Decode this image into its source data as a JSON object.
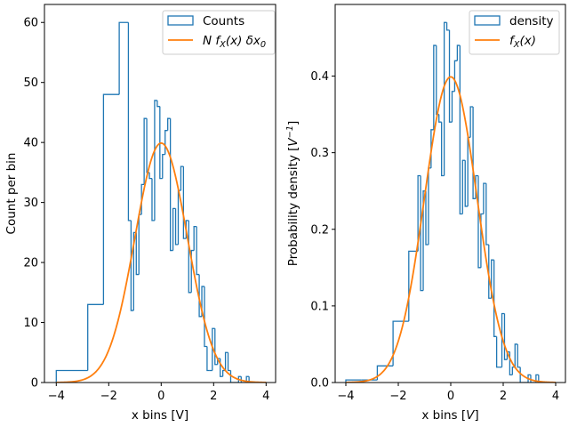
{
  "colors": {
    "hist": "#1f77b4",
    "curve": "#ff7f0e"
  },
  "chart_data": [
    {
      "type": "histogram-step",
      "xlabel": "x bins [V]",
      "ylabel": "Count per bin",
      "xlim": [
        -4.4,
        4.35
      ],
      "ylim": [
        0,
        63
      ],
      "xticks": [
        "−4",
        "−2",
        "0",
        "2",
        "4"
      ],
      "yticks": [
        "0",
        "10",
        "20",
        "30",
        "40",
        "50",
        "60"
      ],
      "grid": false,
      "legend_position": "top-right",
      "legend": [
        "Counts",
        "$N f_X(x) δx_0$"
      ],
      "bin_edges": [
        -4,
        -3.4,
        -2.8,
        -2.2,
        -1.6,
        -1.25,
        -1.15,
        -1.05,
        -0.95,
        -0.85,
        -0.75,
        -0.65,
        -0.55,
        -0.45,
        -0.35,
        -0.25,
        -0.15,
        -0.05,
        0.05,
        0.15,
        0.25,
        0.35,
        0.45,
        0.55,
        0.65,
        0.75,
        0.85,
        0.95,
        1.05,
        1.15,
        1.25,
        1.35,
        1.45,
        1.55,
        1.65,
        1.75,
        1.85,
        1.95,
        2.05,
        2.15,
        2.25,
        2.35,
        2.45,
        2.55,
        2.65,
        2.75,
        2.85,
        2.95,
        3.05,
        3.15,
        3.25,
        3.35,
        3.45,
        3.55,
        3.65,
        3.75,
        3.85,
        3.95
      ],
      "values": [
        2,
        2,
        13,
        48,
        60,
        27,
        12,
        25,
        18,
        28,
        33,
        44,
        35,
        34,
        27,
        47,
        46,
        34,
        38,
        42,
        44,
        22,
        29,
        23,
        32,
        36,
        24,
        27,
        15,
        22,
        26,
        18,
        11,
        16,
        6,
        2,
        2,
        9,
        3,
        4,
        1,
        2,
        5,
        2,
        0,
        0,
        0,
        1,
        0,
        0,
        1,
        0,
        0,
        0,
        0,
        0,
        0
      ],
      "curve": {
        "name_index": 1,
        "function": "N·normal_pdf(x)·δx0",
        "N": 1000,
        "dx0": 0.1,
        "mean": 0,
        "std": 1,
        "x_range": [
          -4,
          4
        ]
      }
    },
    {
      "type": "histogram-step",
      "xlabel": "x bins [$V$]",
      "ylabel": "Probability density [$V^{-1}$]",
      "xlim": [
        -4.4,
        4.35
      ],
      "ylim": [
        0,
        0.4935
      ],
      "xticks": [
        "−4",
        "−2",
        "0",
        "2",
        "4"
      ],
      "yticks": [
        "0.0",
        "0.1",
        "0.2",
        "0.3",
        "0.4"
      ],
      "grid": false,
      "legend_position": "top-right",
      "legend": [
        "density",
        "$f_X(x)$"
      ],
      "bin_edges": [
        -4,
        -3.4,
        -2.8,
        -2.2,
        -1.6,
        -1.25,
        -1.15,
        -1.05,
        -0.95,
        -0.85,
        -0.75,
        -0.65,
        -0.55,
        -0.45,
        -0.35,
        -0.25,
        -0.15,
        -0.05,
        0.05,
        0.15,
        0.25,
        0.35,
        0.45,
        0.55,
        0.65,
        0.75,
        0.85,
        0.95,
        1.05,
        1.15,
        1.25,
        1.35,
        1.45,
        1.55,
        1.65,
        1.75,
        1.85,
        1.95,
        2.05,
        2.15,
        2.25,
        2.35,
        2.45,
        2.55,
        2.65,
        2.75,
        2.85,
        2.95,
        3.05,
        3.15,
        3.25,
        3.35,
        3.45,
        3.55,
        3.65,
        3.75,
        3.85,
        3.95
      ],
      "values": [
        0.0033,
        0.0033,
        0.0217,
        0.08,
        0.1714,
        0.27,
        0.12,
        0.25,
        0.18,
        0.28,
        0.33,
        0.44,
        0.35,
        0.34,
        0.27,
        0.47,
        0.46,
        0.34,
        0.38,
        0.42,
        0.44,
        0.22,
        0.29,
        0.23,
        0.32,
        0.36,
        0.24,
        0.27,
        0.15,
        0.22,
        0.26,
        0.18,
        0.11,
        0.16,
        0.06,
        0.02,
        0.02,
        0.09,
        0.03,
        0.04,
        0.01,
        0.02,
        0.05,
        0.02,
        0,
        0,
        0,
        0.01,
        0,
        0,
        0.01,
        0,
        0,
        0,
        0,
        0,
        0
      ],
      "curve": {
        "name_index": 1,
        "function": "normal_pdf(x)",
        "mean": 0,
        "std": 1,
        "x_range": [
          -4,
          4
        ]
      }
    }
  ]
}
